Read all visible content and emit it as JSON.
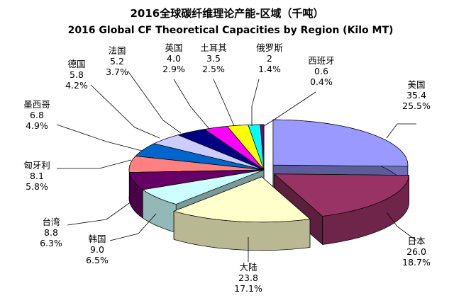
{
  "chart_data": {
    "type": "pie",
    "title": "2016全球碳纤维理论产能-区域（千吨）",
    "subtitle": "2016 Global CF Theoretical Capacities by Region (Kilo MT)",
    "slices": [
      {
        "name": "美国",
        "value": "35.4",
        "percent": "25.5%",
        "color": "#9999ff"
      },
      {
        "name": "日本",
        "value": "26.0",
        "percent": "18.7%",
        "color": "#993366"
      },
      {
        "name": "大陆",
        "value": "23.8",
        "percent": "17.1%",
        "color": "#ffffcc"
      },
      {
        "name": "韩国",
        "value": "9.0",
        "percent": "6.5%",
        "color": "#ccffff"
      },
      {
        "name": "台湾",
        "value": "8.8",
        "percent": "6.3%",
        "color": "#660066"
      },
      {
        "name": "匈牙利",
        "value": "8.1",
        "percent": "5.8%",
        "color": "#ff8080"
      },
      {
        "name": "墨西哥",
        "value": "6.8",
        "percent": "4.9%",
        "color": "#0066cc"
      },
      {
        "name": "德国",
        "value": "5.8",
        "percent": "4.2%",
        "color": "#ccccff"
      },
      {
        "name": "法国",
        "value": "5.2",
        "percent": "3.7%",
        "color": "#000080"
      },
      {
        "name": "英国",
        "value": "4.0",
        "percent": "2.9%",
        "color": "#ff00ff"
      },
      {
        "name": "土耳其",
        "value": "3.5",
        "percent": "2.5%",
        "color": "#ffff00"
      },
      {
        "name": "俄罗斯",
        "value": "2",
        "percent": "1.4%",
        "color": "#00ffff"
      },
      {
        "name": "西班牙",
        "value": "0.6",
        "percent": "0.4%",
        "color": "#800080"
      }
    ],
    "exploded_slices": [
      "美国",
      "日本",
      "大陆"
    ]
  }
}
